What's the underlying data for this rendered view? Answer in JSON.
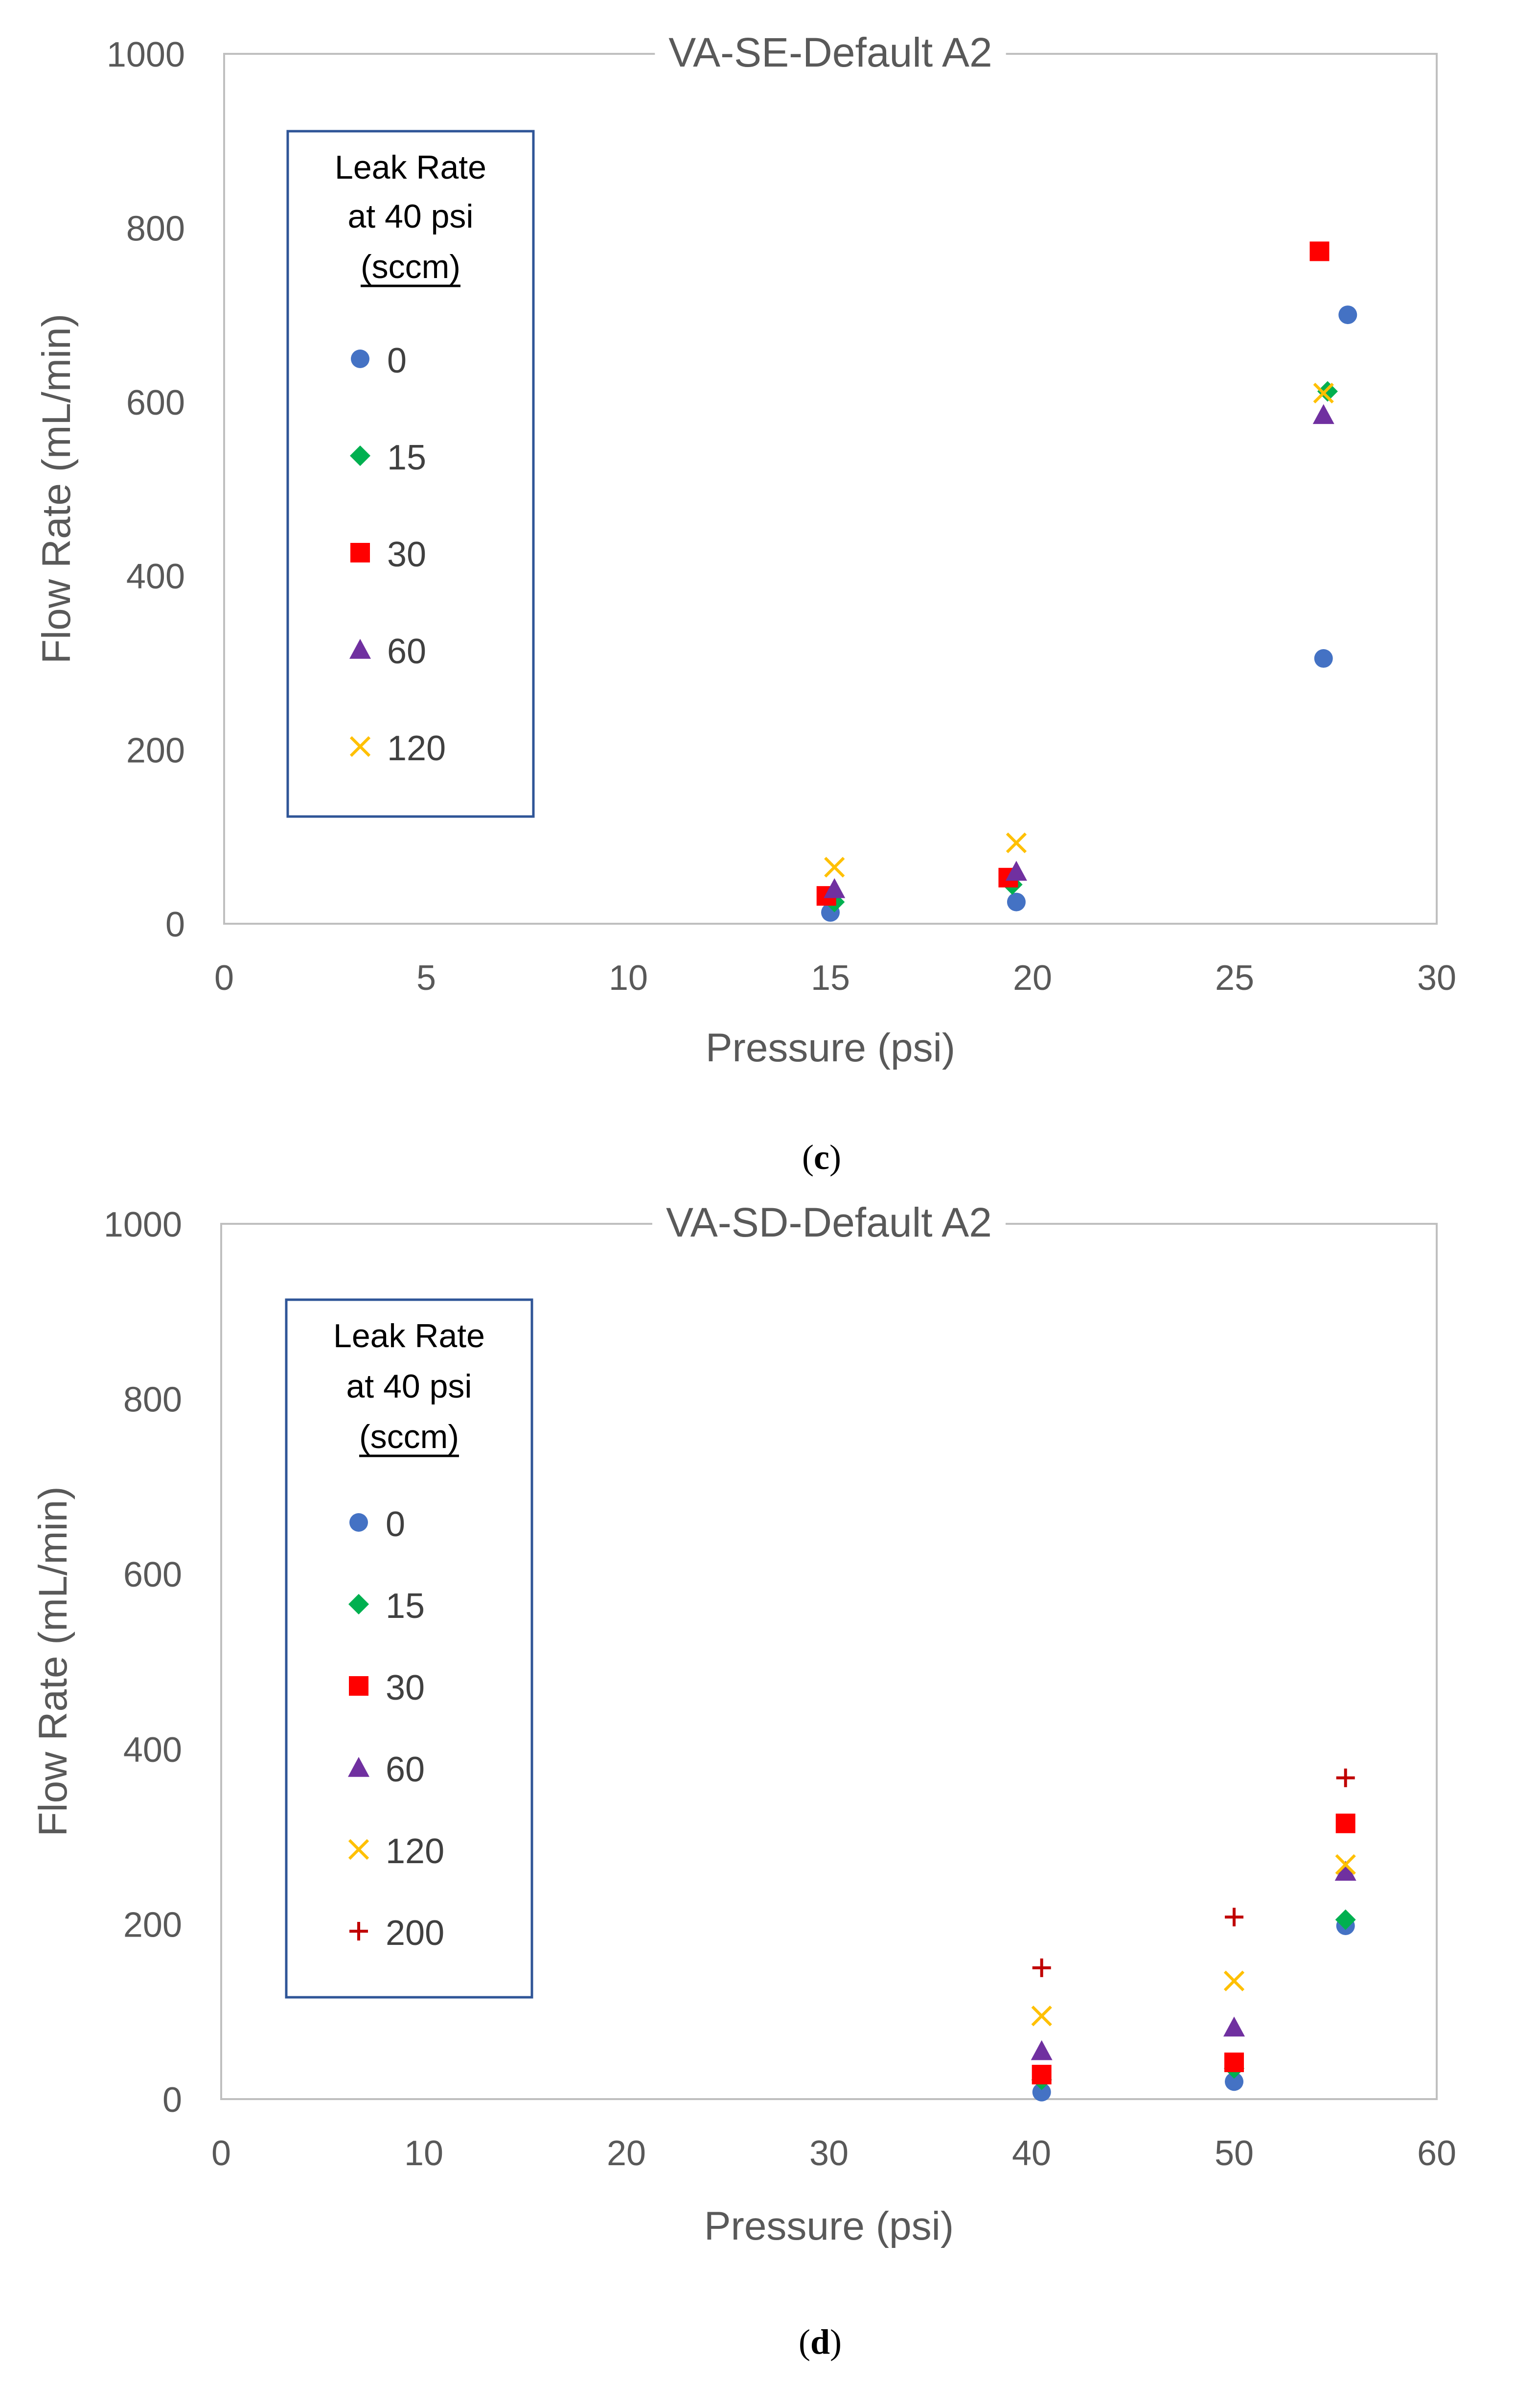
{
  "chart_data": [
    {
      "type": "scatter",
      "panel_label": "c",
      "title": "VA-SE-Default A2",
      "xlabel": "Pressure (psi)",
      "ylabel": "Flow Rate (mL/min)",
      "xlim": [
        0,
        30
      ],
      "ylim": [
        0,
        1000
      ],
      "xticks": [
        0,
        5,
        10,
        15,
        20,
        25,
        30
      ],
      "yticks": [
        0,
        200,
        400,
        600,
        800,
        1000
      ],
      "grid": false,
      "legend": {
        "title_lines": [
          "Leak Rate",
          "at 40 psi",
          "(sccm)"
        ],
        "placement": "top-left"
      },
      "series": [
        {
          "name": "0",
          "marker": "circle",
          "color": "#4472C4",
          "points": [
            [
              15.0,
              13
            ],
            [
              19.6,
              25
            ],
            [
              27.2,
              305
            ],
            [
              27.8,
              700
            ]
          ]
        },
        {
          "name": "15",
          "marker": "diamond",
          "color": "#00B050",
          "points": [
            [
              15.1,
              25
            ],
            [
              19.5,
              45
            ],
            [
              27.3,
              612
            ]
          ]
        },
        {
          "name": "30",
          "marker": "square",
          "color": "#FF0000",
          "points": [
            [
              14.9,
              32
            ],
            [
              19.4,
              53
            ],
            [
              27.1,
              773
            ]
          ]
        },
        {
          "name": "60",
          "marker": "triangle",
          "color": "#7030A0",
          "points": [
            [
              15.1,
              40
            ],
            [
              19.6,
              60
            ],
            [
              27.2,
              585
            ]
          ]
        },
        {
          "name": "120",
          "marker": "x",
          "color": "#FFC000",
          "points": [
            [
              15.1,
              65
            ],
            [
              19.6,
              93
            ],
            [
              27.2,
              610
            ]
          ]
        }
      ]
    },
    {
      "type": "scatter",
      "panel_label": "d",
      "title": "VA-SD-Default A2",
      "xlabel": "Pressure (psi)",
      "ylabel": "Flow Rate (mL/min)",
      "xlim": [
        0,
        60
      ],
      "ylim": [
        0,
        1000
      ],
      "xticks": [
        0,
        10,
        20,
        30,
        40,
        50,
        60
      ],
      "yticks": [
        0,
        200,
        400,
        600,
        800,
        1000
      ],
      "grid": false,
      "legend": {
        "title_lines": [
          "Leak Rate",
          "at 40 psi",
          "(sccm)"
        ],
        "placement": "top-left"
      },
      "series": [
        {
          "name": "0",
          "marker": "circle",
          "color": "#4472C4",
          "points": [
            [
              40.5,
              8
            ],
            [
              50.0,
              20
            ],
            [
              55.5,
              198
            ]
          ]
        },
        {
          "name": "15",
          "marker": "diamond",
          "color": "#00B050",
          "points": [
            [
              40.5,
              22
            ],
            [
              50.0,
              35
            ],
            [
              55.5,
              205
            ]
          ]
        },
        {
          "name": "30",
          "marker": "square",
          "color": "#FF0000",
          "points": [
            [
              40.5,
              28
            ],
            [
              50.0,
              42
            ],
            [
              55.5,
              315
            ]
          ]
        },
        {
          "name": "60",
          "marker": "triangle",
          "color": "#7030A0",
          "points": [
            [
              40.5,
              55
            ],
            [
              50.0,
              82
            ],
            [
              55.5,
              260
            ]
          ]
        },
        {
          "name": "120",
          "marker": "x",
          "color": "#FFC000",
          "points": [
            [
              40.5,
              95
            ],
            [
              50.0,
              135
            ],
            [
              55.5,
              268
            ]
          ]
        },
        {
          "name": "200",
          "marker": "plus",
          "color": "#C00000",
          "points": [
            [
              40.5,
              150
            ],
            [
              50.0,
              208
            ],
            [
              55.5,
              367
            ]
          ]
        }
      ]
    }
  ]
}
